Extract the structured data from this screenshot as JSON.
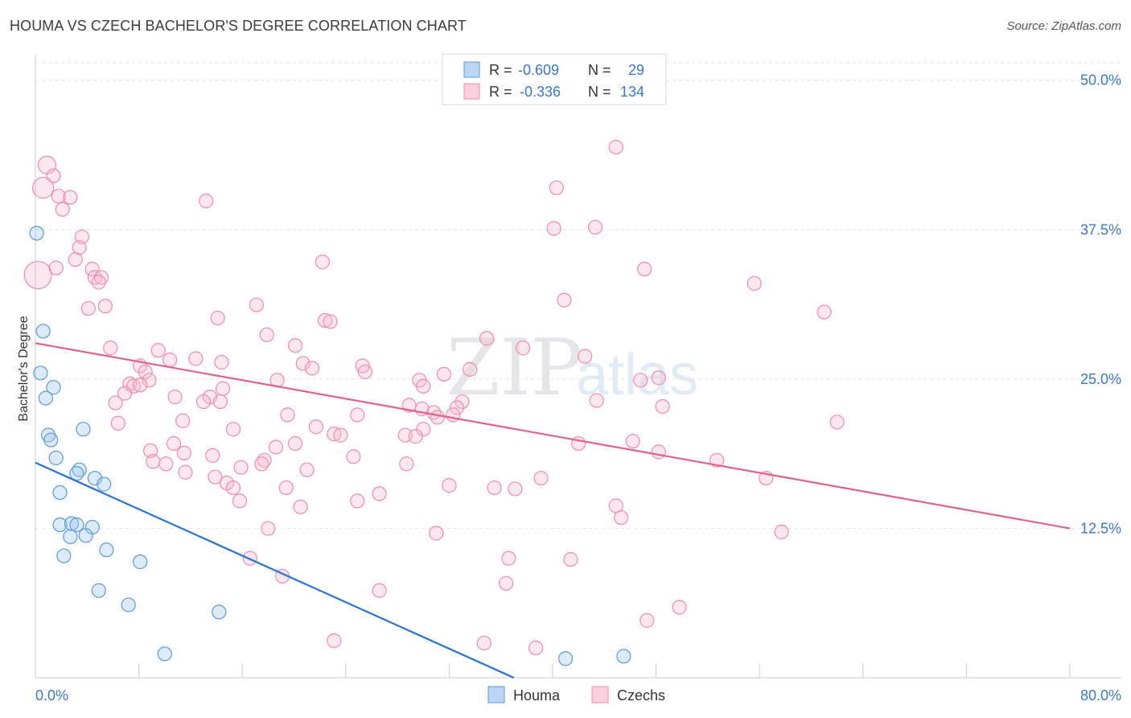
{
  "title": "HOUMA VS CZECH BACHELOR'S DEGREE CORRELATION CHART",
  "source": "Source: ZipAtlas.com",
  "watermark": {
    "zip": "ZIP",
    "atlas": "atlas"
  },
  "colors": {
    "houma": "#5b9bd5",
    "houma_line": "#2b74d3",
    "czechs": "#f08cac",
    "czech_line": "#e0608f",
    "axis_text": "#3a78c9"
  },
  "legend": {
    "rows": [
      {
        "r_label": "R =",
        "r_value": "-0.609",
        "n_label": "N =",
        "n_value": "29"
      },
      {
        "r_label": "R =",
        "r_value": "-0.336",
        "n_label": "N =",
        "n_value": "134"
      }
    ],
    "bottom": [
      {
        "label": "Houma"
      },
      {
        "label": "Czechs"
      }
    ]
  },
  "chart_data": {
    "type": "scatter",
    "title": "HOUMA VS CZECH BACHELOR'S DEGREE CORRELATION CHART",
    "xlabel": "",
    "ylabel": "Bachelor's Degree",
    "xlim": [
      0,
      80
    ],
    "ylim": [
      0,
      52
    ],
    "x_tick_labels": [
      "0.0%",
      "80.0%"
    ],
    "y_ticks": [
      {
        "value": 12.5,
        "label": "12.5%"
      },
      {
        "value": 25.0,
        "label": "25.0%"
      },
      {
        "value": 37.5,
        "label": "37.5%"
      },
      {
        "value": 50.0,
        "label": "50.0%"
      }
    ],
    "series": [
      {
        "name": "Houma",
        "r": -0.609,
        "n": 29,
        "trend": {
          "x": [
            0,
            37
          ],
          "y": [
            18.0,
            0.0
          ]
        },
        "points": [
          {
            "x": 0.1,
            "y": 37.2
          },
          {
            "x": 0.6,
            "y": 29.0
          },
          {
            "x": 0.4,
            "y": 25.5
          },
          {
            "x": 1.4,
            "y": 24.3
          },
          {
            "x": 0.8,
            "y": 23.4
          },
          {
            "x": 3.7,
            "y": 20.8
          },
          {
            "x": 1.0,
            "y": 20.3
          },
          {
            "x": 1.2,
            "y": 19.9
          },
          {
            "x": 1.6,
            "y": 18.4
          },
          {
            "x": 3.4,
            "y": 17.4
          },
          {
            "x": 3.2,
            "y": 17.1
          },
          {
            "x": 4.6,
            "y": 16.7
          },
          {
            "x": 5.3,
            "y": 16.2
          },
          {
            "x": 1.9,
            "y": 15.5
          },
          {
            "x": 1.9,
            "y": 12.8
          },
          {
            "x": 2.8,
            "y": 12.9
          },
          {
            "x": 3.2,
            "y": 12.8
          },
          {
            "x": 4.4,
            "y": 12.6
          },
          {
            "x": 2.7,
            "y": 11.8
          },
          {
            "x": 3.9,
            "y": 11.9
          },
          {
            "x": 5.5,
            "y": 10.7
          },
          {
            "x": 2.2,
            "y": 10.2
          },
          {
            "x": 8.1,
            "y": 9.7
          },
          {
            "x": 4.9,
            "y": 7.3
          },
          {
            "x": 7.2,
            "y": 6.1
          },
          {
            "x": 14.2,
            "y": 5.5
          },
          {
            "x": 10.0,
            "y": 2.0
          },
          {
            "x": 41.0,
            "y": 1.6
          },
          {
            "x": 45.5,
            "y": 1.8
          }
        ]
      },
      {
        "name": "Czechs",
        "r": -0.336,
        "n": 134,
        "trend": {
          "x": [
            0,
            80
          ],
          "y": [
            28.0,
            12.5
          ]
        },
        "points": [
          {
            "x": 44.9,
            "y": 44.4
          },
          {
            "x": 0.9,
            "y": 42.9
          },
          {
            "x": 1.4,
            "y": 42.0
          },
          {
            "x": 0.6,
            "y": 41.0
          },
          {
            "x": 40.3,
            "y": 41.0
          },
          {
            "x": 1.8,
            "y": 40.3
          },
          {
            "x": 2.7,
            "y": 40.2
          },
          {
            "x": 13.2,
            "y": 39.9
          },
          {
            "x": 2.1,
            "y": 39.2
          },
          {
            "x": 40.1,
            "y": 37.6
          },
          {
            "x": 43.3,
            "y": 37.7
          },
          {
            "x": 3.6,
            "y": 36.9
          },
          {
            "x": 3.4,
            "y": 36.0
          },
          {
            "x": 3.1,
            "y": 35.0
          },
          {
            "x": 22.2,
            "y": 34.8
          },
          {
            "x": 4.4,
            "y": 34.2
          },
          {
            "x": 4.6,
            "y": 33.5
          },
          {
            "x": 5.1,
            "y": 33.5
          },
          {
            "x": 0.2,
            "y": 33.7
          },
          {
            "x": 4.9,
            "y": 33.1
          },
          {
            "x": 47.1,
            "y": 34.2
          },
          {
            "x": 55.6,
            "y": 33.0
          },
          {
            "x": 1.6,
            "y": 34.3
          },
          {
            "x": 40.9,
            "y": 31.6
          },
          {
            "x": 5.4,
            "y": 31.1
          },
          {
            "x": 4.1,
            "y": 30.9
          },
          {
            "x": 17.1,
            "y": 31.2
          },
          {
            "x": 14.1,
            "y": 30.1
          },
          {
            "x": 22.4,
            "y": 29.9
          },
          {
            "x": 22.8,
            "y": 29.8
          },
          {
            "x": 61.0,
            "y": 30.6
          },
          {
            "x": 17.9,
            "y": 28.7
          },
          {
            "x": 34.9,
            "y": 28.4
          },
          {
            "x": 20.1,
            "y": 27.8
          },
          {
            "x": 5.8,
            "y": 27.6
          },
          {
            "x": 37.7,
            "y": 27.6
          },
          {
            "x": 9.5,
            "y": 27.4
          },
          {
            "x": 10.4,
            "y": 26.6
          },
          {
            "x": 12.4,
            "y": 26.7
          },
          {
            "x": 14.4,
            "y": 26.4
          },
          {
            "x": 42.5,
            "y": 26.9
          },
          {
            "x": 8.1,
            "y": 26.1
          },
          {
            "x": 25.3,
            "y": 26.1
          },
          {
            "x": 20.7,
            "y": 26.3
          },
          {
            "x": 21.4,
            "y": 25.9
          },
          {
            "x": 33.6,
            "y": 25.8
          },
          {
            "x": 8.5,
            "y": 25.6
          },
          {
            "x": 25.5,
            "y": 25.6
          },
          {
            "x": 31.6,
            "y": 25.4
          },
          {
            "x": 48.2,
            "y": 25.1
          },
          {
            "x": 7.3,
            "y": 24.6
          },
          {
            "x": 8.8,
            "y": 24.9
          },
          {
            "x": 29.7,
            "y": 24.9
          },
          {
            "x": 46.8,
            "y": 24.9
          },
          {
            "x": 7.6,
            "y": 24.4
          },
          {
            "x": 18.7,
            "y": 24.9
          },
          {
            "x": 10.8,
            "y": 23.5
          },
          {
            "x": 13.5,
            "y": 23.5
          },
          {
            "x": 14.5,
            "y": 24.2
          },
          {
            "x": 6.2,
            "y": 23.0
          },
          {
            "x": 8.1,
            "y": 24.5
          },
          {
            "x": 14.3,
            "y": 23.1
          },
          {
            "x": 13.0,
            "y": 23.1
          },
          {
            "x": 6.9,
            "y": 23.8
          },
          {
            "x": 30.0,
            "y": 24.4
          },
          {
            "x": 29.9,
            "y": 22.5
          },
          {
            "x": 43.4,
            "y": 23.2
          },
          {
            "x": 33.0,
            "y": 23.1
          },
          {
            "x": 32.6,
            "y": 22.6
          },
          {
            "x": 28.9,
            "y": 22.8
          },
          {
            "x": 48.5,
            "y": 22.7
          },
          {
            "x": 19.5,
            "y": 22.0
          },
          {
            "x": 24.9,
            "y": 22.0
          },
          {
            "x": 30.8,
            "y": 22.2
          },
          {
            "x": 31.1,
            "y": 21.8
          },
          {
            "x": 32.3,
            "y": 22.0
          },
          {
            "x": 6.4,
            "y": 21.3
          },
          {
            "x": 11.4,
            "y": 21.5
          },
          {
            "x": 15.3,
            "y": 20.8
          },
          {
            "x": 21.7,
            "y": 21.0
          },
          {
            "x": 30.0,
            "y": 20.8
          },
          {
            "x": 62.0,
            "y": 21.4
          },
          {
            "x": 23.1,
            "y": 20.4
          },
          {
            "x": 23.6,
            "y": 20.3
          },
          {
            "x": 28.6,
            "y": 20.3
          },
          {
            "x": 29.4,
            "y": 20.2
          },
          {
            "x": 20.1,
            "y": 19.6
          },
          {
            "x": 10.7,
            "y": 19.6
          },
          {
            "x": 42.0,
            "y": 19.6
          },
          {
            "x": 46.2,
            "y": 19.8
          },
          {
            "x": 11.5,
            "y": 18.8
          },
          {
            "x": 8.9,
            "y": 19.0
          },
          {
            "x": 18.6,
            "y": 19.3
          },
          {
            "x": 13.7,
            "y": 18.6
          },
          {
            "x": 24.6,
            "y": 18.5
          },
          {
            "x": 17.7,
            "y": 18.2
          },
          {
            "x": 48.2,
            "y": 18.9
          },
          {
            "x": 9.1,
            "y": 18.1
          },
          {
            "x": 10.1,
            "y": 17.9
          },
          {
            "x": 17.5,
            "y": 17.9
          },
          {
            "x": 28.7,
            "y": 17.9
          },
          {
            "x": 15.9,
            "y": 17.6
          },
          {
            "x": 52.7,
            "y": 18.2
          },
          {
            "x": 11.6,
            "y": 17.2
          },
          {
            "x": 21.0,
            "y": 17.4
          },
          {
            "x": 13.9,
            "y": 16.8
          },
          {
            "x": 39.1,
            "y": 16.7
          },
          {
            "x": 56.5,
            "y": 16.7
          },
          {
            "x": 14.8,
            "y": 16.3
          },
          {
            "x": 15.3,
            "y": 15.9
          },
          {
            "x": 32.0,
            "y": 16.1
          },
          {
            "x": 35.5,
            "y": 15.9
          },
          {
            "x": 37.1,
            "y": 15.8
          },
          {
            "x": 19.4,
            "y": 15.9
          },
          {
            "x": 26.6,
            "y": 15.4
          },
          {
            "x": 15.8,
            "y": 14.8
          },
          {
            "x": 24.9,
            "y": 14.8
          },
          {
            "x": 44.9,
            "y": 14.4
          },
          {
            "x": 20.5,
            "y": 14.3
          },
          {
            "x": 45.3,
            "y": 13.4
          },
          {
            "x": 18.0,
            "y": 12.5
          },
          {
            "x": 31.0,
            "y": 12.1
          },
          {
            "x": 57.7,
            "y": 12.2
          },
          {
            "x": 36.6,
            "y": 10.0
          },
          {
            "x": 41.4,
            "y": 9.9
          },
          {
            "x": 16.6,
            "y": 10.0
          },
          {
            "x": 19.1,
            "y": 8.5
          },
          {
            "x": 36.4,
            "y": 7.9
          },
          {
            "x": 26.6,
            "y": 7.3
          },
          {
            "x": 49.8,
            "y": 5.9
          },
          {
            "x": 47.3,
            "y": 4.8
          },
          {
            "x": 23.1,
            "y": 3.1
          },
          {
            "x": 34.7,
            "y": 2.9
          },
          {
            "x": 38.7,
            "y": 2.5
          }
        ]
      }
    ]
  }
}
